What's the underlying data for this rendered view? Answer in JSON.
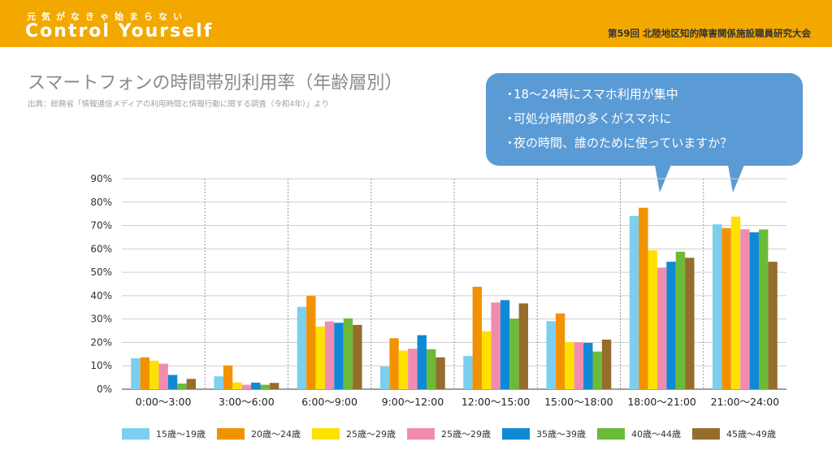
{
  "header": {
    "tagline": "元気がなきゃ始まらない",
    "brand": "Control Yourself",
    "event": "第59回 北陸地区知的障害関係施設職員研究大会"
  },
  "title": "スマートフォンの時間帯別利用率（年齢層別）",
  "source": "出典：総務省「情報通信メディアの利用時間と情報行動に関する調査（令和4年）」より",
  "callout": {
    "points": [
      "18～24時にスマホ利用が集中",
      "可処分時間の多くがスマホに",
      "夜の時間、誰のために使っていますか？"
    ],
    "bullet": "・"
  },
  "chart_data": {
    "type": "bar",
    "title": "スマートフォンの時間帯別利用率（年齢層別）",
    "xlabel": "",
    "ylabel": "",
    "ylim": [
      0,
      90
    ],
    "ytick_step": 10,
    "ytick_suffix": "%",
    "grid": "horizontal",
    "legend_position": "bottom",
    "categories": [
      "0:00～3:00",
      "3:00～6:00",
      "6:00～9:00",
      "9:00～12:00",
      "12:00～15:00",
      "15:00～18:00",
      "18:00～21:00",
      "21:00～24:00"
    ],
    "series": [
      {
        "name": "15歳～19歳",
        "color": "#7ccfef",
        "values": [
          13.2,
          5.5,
          35.2,
          9.7,
          14.2,
          29.1,
          74.1,
          70.5
        ]
      },
      {
        "name": "20歳～24歳",
        "color": "#f39200",
        "values": [
          13.6,
          10.1,
          39.9,
          21.8,
          43.8,
          32.4,
          77.6,
          68.9
        ]
      },
      {
        "name": "25歳～29歳",
        "color": "#ffe100",
        "values": [
          12.2,
          2.9,
          26.8,
          16.5,
          24.8,
          20.1,
          59.4,
          73.8
        ]
      },
      {
        "name": "25歳～29歳",
        "color": "#f08daf",
        "values": [
          10.9,
          1.9,
          29.0,
          17.3,
          37.1,
          20.1,
          52.0,
          68.4
        ]
      },
      {
        "name": "35歳～39歳",
        "color": "#0f89d6",
        "values": [
          6.1,
          2.8,
          28.4,
          23.1,
          38.1,
          19.8,
          54.5,
          67.1
        ]
      },
      {
        "name": "40歳～44歳",
        "color": "#6cba3a",
        "values": [
          2.4,
          1.9,
          30.3,
          17.1,
          30.2,
          16.1,
          58.8,
          68.3
        ]
      },
      {
        "name": "45歳～49歳",
        "color": "#956d2c",
        "values": [
          4.4,
          2.7,
          27.5,
          13.6,
          36.7,
          21.2,
          56.2,
          54.5
        ]
      }
    ]
  }
}
